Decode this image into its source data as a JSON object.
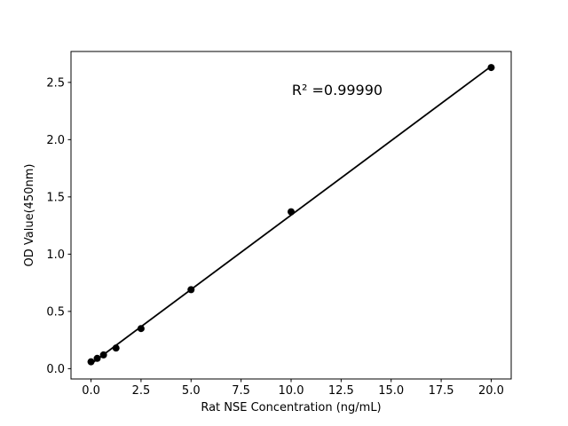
{
  "chart_data": {
    "type": "scatter",
    "title": "",
    "xlabel": "Rat NSE Concentration (ng/mL)",
    "ylabel": "OD Value(450nm)",
    "annotation": {
      "text": "R² =0.99990",
      "x_data": 12.3,
      "y_data": 2.45
    },
    "series": [
      {
        "name": "standards",
        "x": [
          0,
          0.31,
          0.625,
          1.25,
          2.5,
          5,
          10,
          20
        ],
        "y": [
          0.06,
          0.09,
          0.12,
          0.18,
          0.35,
          0.69,
          1.37,
          2.63
        ]
      }
    ],
    "trendline": {
      "fit": "least-squares",
      "x_start": 0,
      "x_end": 20
    },
    "xlim": [
      -1,
      21
    ],
    "ylim": [
      -0.09,
      2.77
    ],
    "xticks": {
      "values": [
        0,
        2.5,
        5,
        7.5,
        10,
        12.5,
        15,
        17.5,
        20
      ],
      "labels": [
        "0.0",
        "2.5",
        "5.0",
        "7.5",
        "10.0",
        "12.5",
        "15.0",
        "17.5",
        "20.0"
      ]
    },
    "yticks": {
      "values": [
        0,
        0.5,
        1,
        1.5,
        2,
        2.5
      ],
      "labels": [
        "0.0",
        "0.5",
        "1.0",
        "1.5",
        "2.0",
        "2.5"
      ]
    },
    "grid": false,
    "legend": "none",
    "colors": {
      "marker": "#000000",
      "line": "#000000",
      "spine": "#000000",
      "text": "#000000",
      "background": "#ffffff"
    }
  }
}
